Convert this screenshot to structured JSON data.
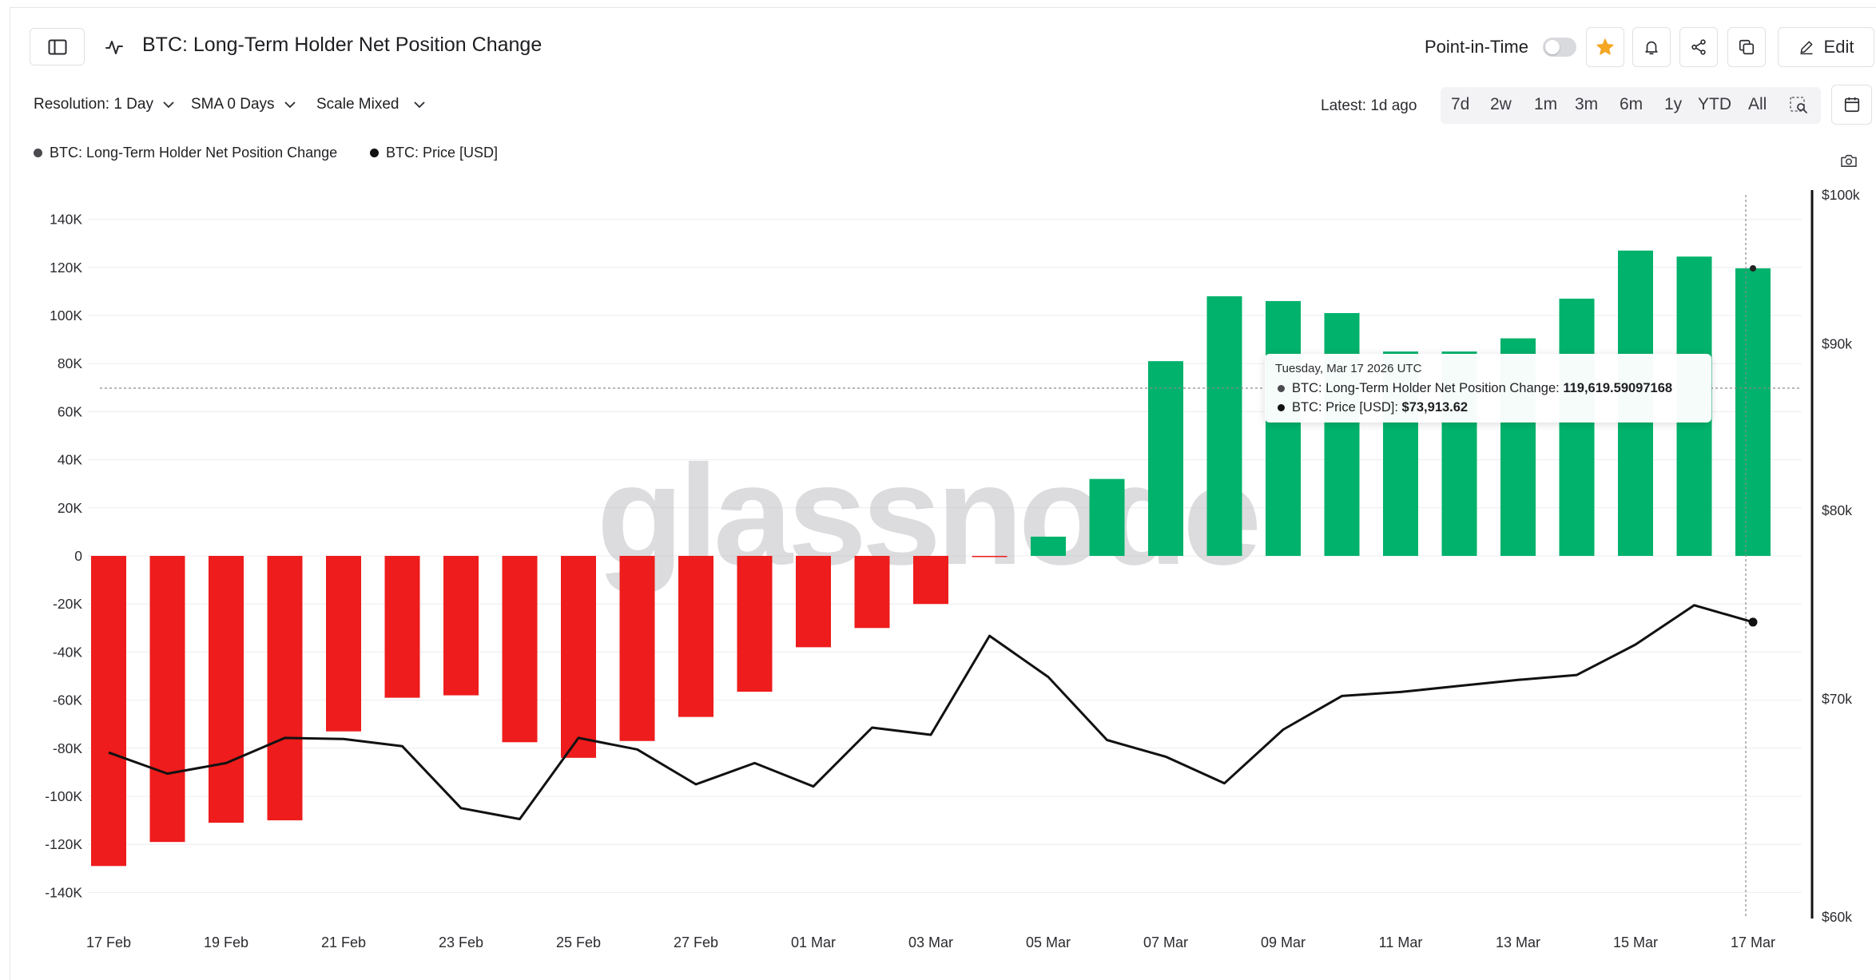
{
  "header": {
    "title": "BTC: Long-Term Holder Net Position Change",
    "point_in_time_label": "Point-in-Time",
    "point_in_time_enabled": false,
    "edit_label": "Edit",
    "icons": [
      "sidebar-toggle-icon",
      "line-chart-icon",
      "star-icon",
      "bell-icon",
      "share-icon",
      "copy-icon",
      "pencil-icon",
      "calendar-icon",
      "camera-icon",
      "zoom-select-icon"
    ]
  },
  "controls": {
    "resolution": "Resolution: 1 Day",
    "sma": "SMA 0 Days",
    "scale": "Scale Mixed",
    "latest": "Latest: 1d ago",
    "ranges": [
      "7d",
      "2w",
      "1m",
      "3m",
      "6m",
      "1y",
      "YTD",
      "All"
    ]
  },
  "legend": [
    {
      "label": "BTC: Long-Term Holder Net Position Change",
      "color": "#4a4a4f"
    },
    {
      "label": "BTC: Price [USD]",
      "color": "#111111"
    }
  ],
  "tooltip": {
    "date": "Tuesday, Mar 17 2026 UTC",
    "rows": [
      {
        "label": "BTC: Long-Term Holder Net Position Change: ",
        "value": "119,619.59097168",
        "color": "#4a4a4f"
      },
      {
        "label": "BTC: Price [USD]: ",
        "value": "$73,913.62",
        "color": "#111111"
      }
    ]
  },
  "watermark": "glassnode",
  "colors": {
    "positive": "#00b26b",
    "negative": "#ee1c1c",
    "price_line": "#111111"
  },
  "chart_data": {
    "type": "bar",
    "x": [
      "17 Feb",
      "18 Feb",
      "19 Feb",
      "20 Feb",
      "21 Feb",
      "22 Feb",
      "23 Feb",
      "24 Feb",
      "25 Feb",
      "26 Feb",
      "27 Feb",
      "28 Feb",
      "01 Mar",
      "02 Mar",
      "03 Mar",
      "04 Mar",
      "05 Mar",
      "06 Mar",
      "07 Mar",
      "08 Mar",
      "09 Mar",
      "10 Mar",
      "11 Mar",
      "12 Mar",
      "13 Mar",
      "14 Mar",
      "15 Mar",
      "16 Mar",
      "17 Mar"
    ],
    "x_tick_labels": [
      "17 Feb",
      "19 Feb",
      "21 Feb",
      "23 Feb",
      "25 Feb",
      "27 Feb",
      "01 Mar",
      "03 Mar",
      "05 Mar",
      "07 Mar",
      "09 Mar",
      "11 Mar",
      "13 Mar",
      "15 Mar",
      "17 Mar"
    ],
    "series": [
      {
        "name": "BTC: Long-Term Holder Net Position Change",
        "type": "bar",
        "axis": "left",
        "values": [
          -129000,
          -119000,
          -111000,
          -110000,
          -73000,
          -59000,
          -58000,
          -77500,
          -84000,
          -77000,
          -67000,
          -56500,
          -38000,
          -30000,
          -20000,
          -400,
          8000,
          32000,
          81000,
          108000,
          106000,
          101000,
          85000,
          85000,
          90500,
          107000,
          127000,
          124500,
          119619.59
        ]
      },
      {
        "name": "BTC: Price [USD]",
        "type": "line",
        "axis": "right",
        "values": [
          67400,
          66400,
          66900,
          68100,
          68050,
          67700,
          64800,
          64300,
          68100,
          67550,
          65900,
          66900,
          65800,
          68600,
          68250,
          73200,
          71100,
          68000,
          67200,
          65950,
          68500,
          70150,
          70350,
          70650,
          70950,
          71200,
          72750,
          74800,
          73913.62
        ]
      }
    ],
    "y_left": {
      "ticks": [
        140000,
        120000,
        100000,
        80000,
        60000,
        40000,
        20000,
        0,
        -20000,
        -40000,
        -60000,
        -80000,
        -100000,
        -120000,
        -140000
      ],
      "tick_labels": [
        "140K",
        "120K",
        "100K",
        "80K",
        "60K",
        "40K",
        "20K",
        "0",
        "-20K",
        "-40K",
        "-60K",
        "-80K",
        "-100K",
        "-120K",
        "-140K"
      ],
      "range": [
        -150000,
        150000
      ]
    },
    "y_right": {
      "scale": "log",
      "ticks": [
        100000,
        90000,
        80000,
        70000,
        60000
      ],
      "tick_labels": [
        "$100k",
        "$90k",
        "$80k",
        "$70k",
        "$60k"
      ],
      "range": [
        60000,
        100000
      ]
    },
    "grid": true,
    "legend_position": "top-left"
  }
}
